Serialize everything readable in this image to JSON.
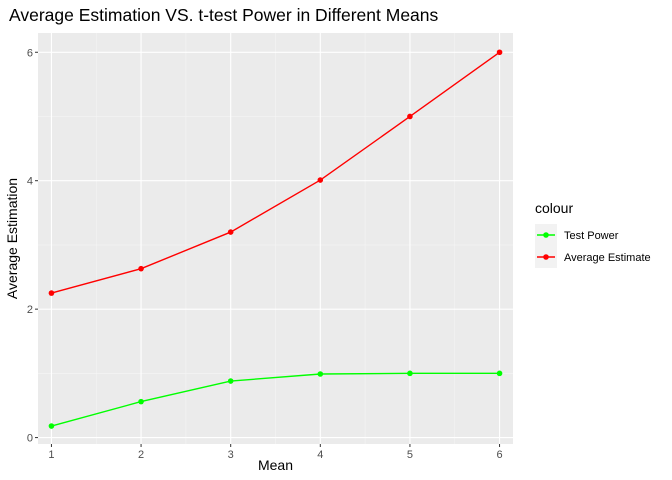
{
  "chart_data": {
    "type": "line",
    "title": "Average Estimation VS. t-test Power in Different Means",
    "xlabel": "Mean",
    "ylabel": "Average Estimation",
    "x": [
      1,
      2,
      3,
      4,
      5,
      6
    ],
    "xlim": [
      0.85,
      6.15
    ],
    "ylim": [
      -0.1,
      6.3
    ],
    "xticks": [
      "1",
      "2",
      "3",
      "4",
      "5",
      "6"
    ],
    "yticks": [
      "0",
      "2",
      "4",
      "6"
    ],
    "grid": true,
    "legend": {
      "title": "colour",
      "placement": "right",
      "items": [
        "Test Power",
        "Average Estimate"
      ]
    },
    "series": [
      {
        "name": "Test Power",
        "color": "#00ff00",
        "values": [
          0.18,
          0.56,
          0.88,
          0.99,
          1.0,
          1.0
        ]
      },
      {
        "name": "Average Estimate",
        "color": "#ff0000",
        "values": [
          2.25,
          2.63,
          3.2,
          4.01,
          5.0,
          6.0
        ]
      }
    ]
  }
}
